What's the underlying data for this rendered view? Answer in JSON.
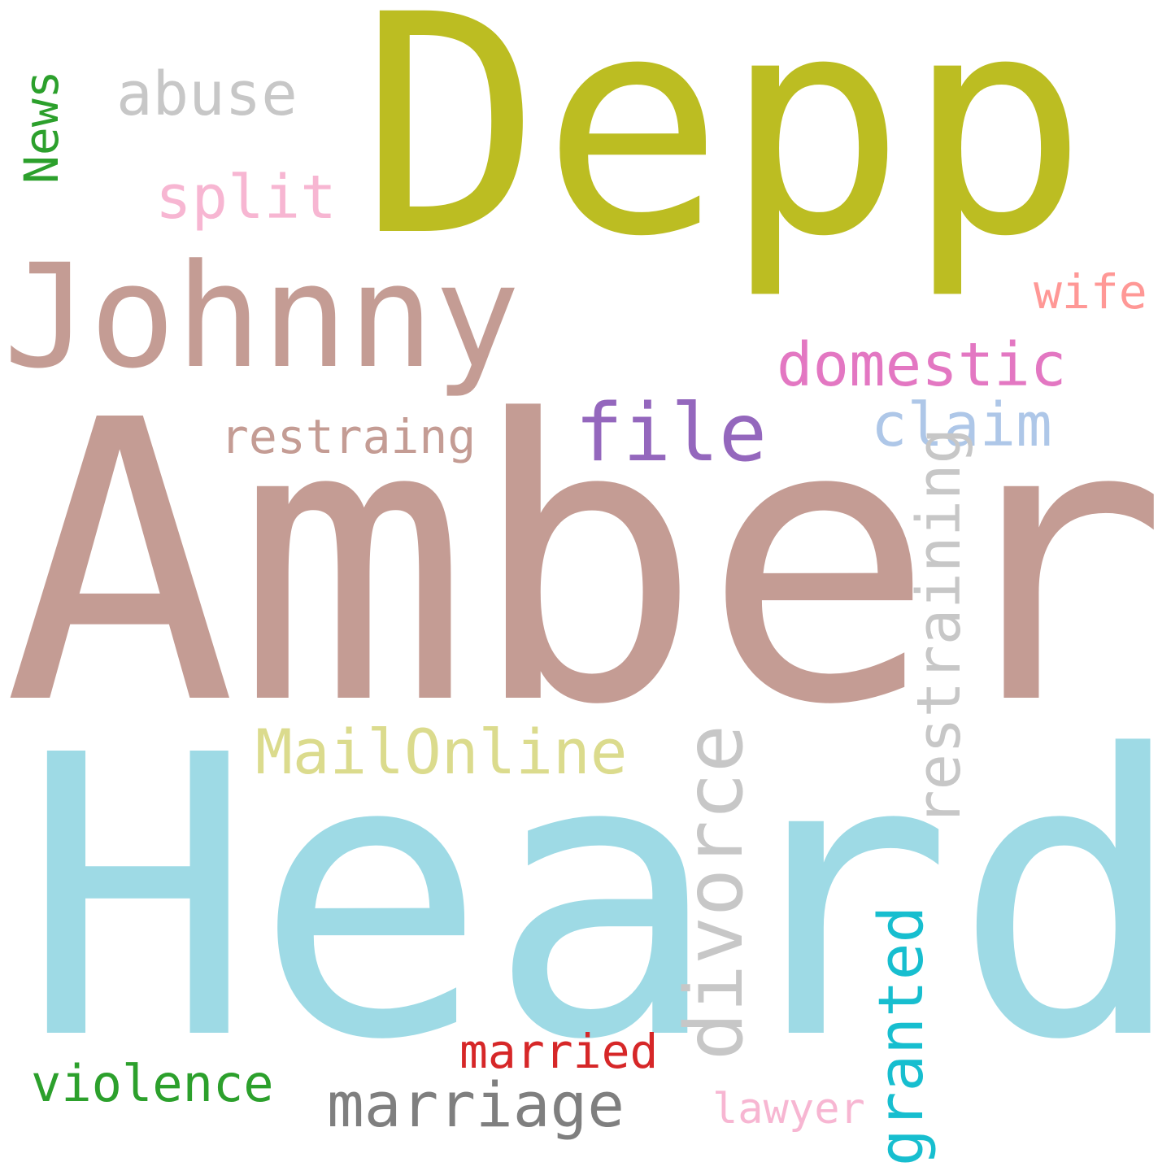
{
  "words": {
    "depp": {
      "text": "Depp",
      "color": "#bcbd22"
    },
    "amber": {
      "text": "Amber",
      "color": "#c49c94"
    },
    "heard": {
      "text": "Heard",
      "color": "#9edae5"
    },
    "johnny": {
      "text": "Johnny",
      "color": "#c49c94"
    },
    "abuse": {
      "text": "abuse",
      "color": "#c7c7c7"
    },
    "news": {
      "text": "News",
      "color": "#2ca02c"
    },
    "split": {
      "text": "split",
      "color": "#f7b6d2"
    },
    "wife": {
      "text": "wife",
      "color": "#ff9896"
    },
    "domestic": {
      "text": "domestic",
      "color": "#e377c2"
    },
    "file": {
      "text": "file",
      "color": "#9467bd"
    },
    "claim": {
      "text": "claim",
      "color": "#aec7e8"
    },
    "restraing": {
      "text": "restraing",
      "color": "#c49c94"
    },
    "restraining": {
      "text": "restraining",
      "color": "#c7c7c7"
    },
    "divorce": {
      "text": "divorce",
      "color": "#c7c7c7"
    },
    "mailonline": {
      "text": "MailOnline",
      "color": "#dbdb8d"
    },
    "granted": {
      "text": "granted",
      "color": "#17becf"
    },
    "married": {
      "text": "married",
      "color": "#d62728"
    },
    "violence": {
      "text": "violence",
      "color": "#2ca02c"
    },
    "marriage": {
      "text": "marriage",
      "color": "#7f7f7f"
    },
    "lawyer": {
      "text": "lawyer",
      "color": "#f7b6d2"
    }
  }
}
